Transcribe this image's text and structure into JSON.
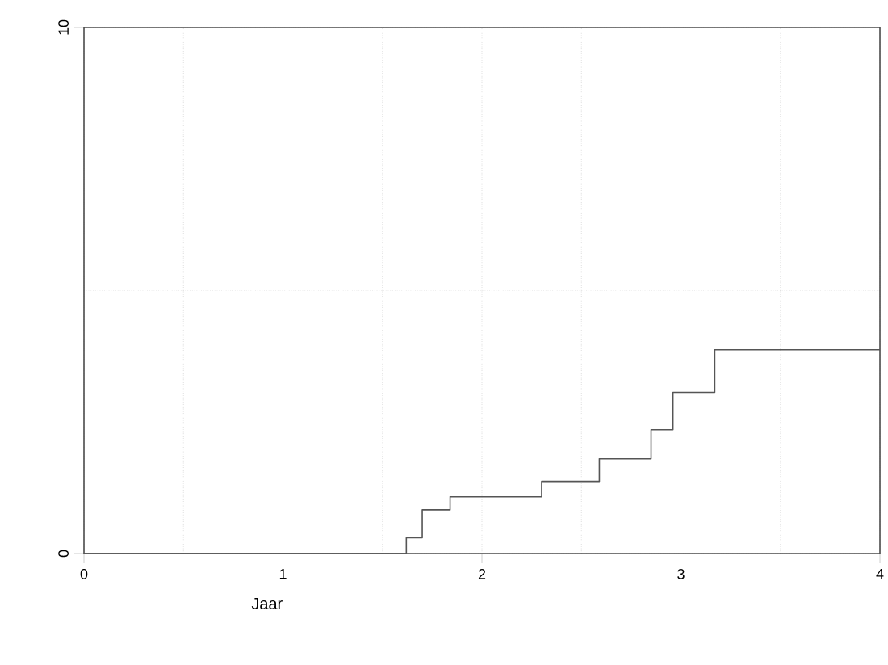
{
  "chart_data": {
    "type": "step",
    "xlabel": "Jaar",
    "x": [
      0,
      1.62,
      1.7,
      1.84,
      2.3,
      2.59,
      2.85,
      2.96,
      3.17,
      4
    ],
    "values": [
      0,
      0.3,
      0.83,
      1.08,
      1.37,
      1.8,
      2.35,
      3.06,
      3.87,
      3.87
    ],
    "color": "#555555",
    "xlim": [
      0,
      4
    ],
    "xticks": [
      0,
      1,
      2,
      3,
      4
    ],
    "ylim": [
      0,
      10
    ],
    "yticks": [
      0,
      10
    ],
    "grid": true
  }
}
